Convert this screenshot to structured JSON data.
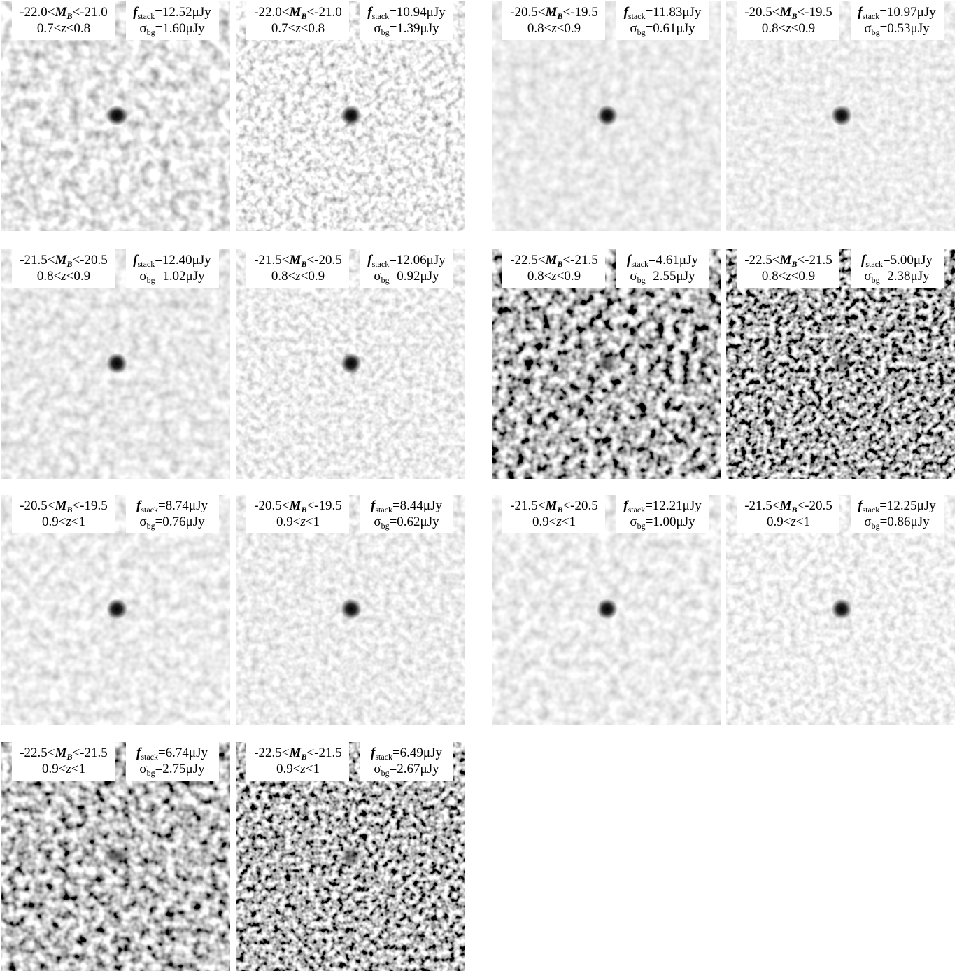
{
  "symbols": {
    "mag": "M",
    "mag_sub": "B",
    "z": "z",
    "flux": "f",
    "flux_sub": "stack",
    "sigma": "σ",
    "sigma_sub": "bg"
  },
  "panels": [
    {
      "mag_lo": "-22.0<",
      "mag_hi": "<-21.0",
      "z_lo": "0.7<",
      "z_hi": "<0.8",
      "flux": "=12.52μJy",
      "sigma": "=1.60μJy"
    },
    {
      "mag_lo": "-22.0<",
      "mag_hi": "<-21.0",
      "z_lo": "0.7<",
      "z_hi": "<0.8",
      "flux": "=10.94μJy",
      "sigma": "=1.39μJy"
    },
    {
      "mag_lo": "-20.5<",
      "mag_hi": "<-19.5",
      "z_lo": "0.8<",
      "z_hi": "<0.9",
      "flux": "=11.83μJy",
      "sigma": "=0.61μJy"
    },
    {
      "mag_lo": "-20.5<",
      "mag_hi": "<-19.5",
      "z_lo": "0.8<",
      "z_hi": "<0.9",
      "flux": "=10.97μJy",
      "sigma": "=0.53μJy"
    },
    {
      "mag_lo": "-21.5<",
      "mag_hi": "<-20.5",
      "z_lo": "0.8<",
      "z_hi": "<0.9",
      "flux": "=12.40μJy",
      "sigma": "=1.02μJy"
    },
    {
      "mag_lo": "-21.5<",
      "mag_hi": "<-20.5",
      "z_lo": "0.8<",
      "z_hi": "<0.9",
      "flux": "=12.06μJy",
      "sigma": "=0.92μJy"
    },
    {
      "mag_lo": "-22.5<",
      "mag_hi": "<-21.5",
      "z_lo": "0.8<",
      "z_hi": "<0.9",
      "flux": "=4.61μJy",
      "sigma": "=2.55μJy"
    },
    {
      "mag_lo": "-22.5<",
      "mag_hi": "<-21.5",
      "z_lo": "0.8<",
      "z_hi": "<0.9",
      "flux": "=5.00μJy",
      "sigma": "=2.38μJy"
    },
    {
      "mag_lo": "-20.5<",
      "mag_hi": "<-19.5",
      "z_lo": "0.9<",
      "z_hi": "<1",
      "flux": "=8.74μJy",
      "sigma": "=0.76μJy"
    },
    {
      "mag_lo": "-20.5<",
      "mag_hi": "<-19.5",
      "z_lo": "0.9<",
      "z_hi": "<1",
      "flux": "=8.44μJy",
      "sigma": "=0.62μJy"
    },
    {
      "mag_lo": "-21.5<",
      "mag_hi": "<-20.5",
      "z_lo": "0.9<",
      "z_hi": "<1",
      "flux": "=12.21μJy",
      "sigma": "=1.00μJy"
    },
    {
      "mag_lo": "-21.5<",
      "mag_hi": "<-20.5",
      "z_lo": "0.9<",
      "z_hi": "<1",
      "flux": "=12.25μJy",
      "sigma": "=0.86μJy"
    },
    {
      "mag_lo": "-22.5<",
      "mag_hi": "<-21.5",
      "z_lo": "0.9<",
      "z_hi": "<1",
      "flux": "=6.74μJy",
      "sigma": "=2.75μJy"
    },
    {
      "mag_lo": "-22.5<",
      "mag_hi": "<-21.5",
      "z_lo": "0.9<",
      "z_hi": "<1",
      "flux": "=6.49μJy",
      "sigma": "=2.67μJy"
    }
  ]
}
